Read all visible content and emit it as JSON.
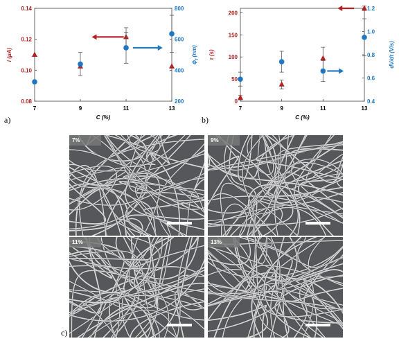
{
  "colors": {
    "red": "#b22222",
    "blue": "#1f77c4",
    "axis": "#000000",
    "sem_bg": "#55575a",
    "fiber": "#d9d9d9"
  },
  "panel_labels": {
    "a": "a)",
    "b": "b)",
    "c": "c)"
  },
  "chart_data": [
    {
      "type": "scatter",
      "title": "",
      "xlabel": "C (%)",
      "ylabel_left": "i (μA)",
      "ylabel_right": "ϕf (nm)",
      "ylabel_right_symbol": "ϕ",
      "ylabel_right_sub": "f",
      "ylabel_right_unit": "(nm)",
      "x_ticks": [
        "7",
        "9",
        "11",
        "13"
      ],
      "y_left_ticks": [
        "0.08",
        "0.10",
        "0.12",
        "0.14"
      ],
      "y_right_ticks": [
        "200",
        "400",
        "600",
        "800"
      ],
      "xlim": [
        7,
        13
      ],
      "ylim_left": [
        0.08,
        0.14
      ],
      "ylim_right": [
        200,
        800
      ],
      "grid": false,
      "series": [
        {
          "name": "",
          "axis": "left",
          "marker": "triangle",
          "color": "#b22222",
          "x": [
            7,
            9,
            11,
            13
          ],
          "y": [
            0.11,
            0.1025,
            0.1215,
            0.1025
          ],
          "err": [
            0,
            0,
            0.006,
            0
          ]
        },
        {
          "name": "",
          "axis": "right",
          "marker": "circle",
          "color": "#1f77c4",
          "x": [
            7,
            9,
            11,
            13
          ],
          "y": [
            325,
            440,
            545,
            635
          ],
          "err": [
            0,
            75,
            100,
            120
          ]
        }
      ],
      "arrows": [
        {
          "direction": "left",
          "color": "#b22222",
          "x_from": 10.9,
          "x_to": 9.5,
          "y": 0.1215,
          "axis": "left"
        },
        {
          "direction": "right",
          "color": "#1f77c4",
          "x_from": 11.3,
          "x_to": 12.6,
          "y": 545,
          "axis": "right"
        }
      ]
    },
    {
      "type": "scatter",
      "title": "",
      "xlabel": "C (%)",
      "ylabel_left": "τ (s)",
      "ylabel_right": "dV/dt (V/s)",
      "x_ticks": [
        "7",
        "9",
        "11",
        "13"
      ],
      "y_left_ticks": [
        "0",
        "50",
        "100",
        "150",
        "200"
      ],
      "y_right_ticks": [
        "0.4",
        "0.6",
        "0.8",
        "1.0",
        "1.2"
      ],
      "xlim": [
        7,
        13
      ],
      "ylim_left": [
        0,
        210
      ],
      "ylim_right": [
        0.4,
        1.2
      ],
      "grid": false,
      "series": [
        {
          "name": "",
          "axis": "left",
          "marker": "triangle",
          "color": "#b22222",
          "x": [
            7,
            9,
            11,
            13
          ],
          "y": [
            8,
            38,
            97,
            210
          ],
          "err": [
            5,
            10,
            25,
            5
          ]
        },
        {
          "name": "",
          "axis": "right",
          "marker": "circle",
          "color": "#1f77c4",
          "x": [
            7,
            9,
            11,
            13
          ],
          "y": [
            0.59,
            0.74,
            0.66,
            0.95
          ],
          "err": [
            0.06,
            0.09,
            0.09,
            0.16
          ]
        }
      ],
      "arrows": [
        {
          "direction": "left",
          "color": "#b22222",
          "x_from": 12.5,
          "x_to": 11.7,
          "y": 210,
          "axis": "left"
        },
        {
          "direction": "right",
          "color": "#1f77c4",
          "x_from": 11.2,
          "x_to": 12.0,
          "y": 0.66,
          "axis": "right"
        }
      ]
    }
  ],
  "sem_images": [
    {
      "label": "7%"
    },
    {
      "label": "9%"
    },
    {
      "label": "11%"
    },
    {
      "label": "13%"
    }
  ]
}
